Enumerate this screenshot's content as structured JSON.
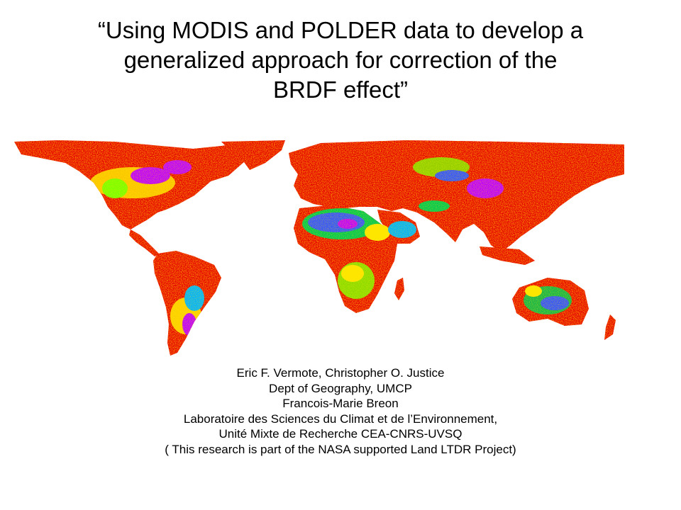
{
  "slide": {
    "title_lines": [
      "“Using MODIS and POLDER data to develop a",
      "generalized approach for correction of the",
      "BRDF effect”"
    ],
    "credit_lines": [
      "Eric F. Vermote, Christopher O. Justice",
      "Dept of Geography, UMCP",
      "Francois-Marie Breon",
      "Laboratoire des Sciences du Climat et de l’Environnement,",
      "Unité Mixte de Recherche CEA-CNRS-UVSQ",
      "( This research is part of the NASA supported Land LTDR Project)"
    ]
  },
  "map": {
    "palette": [
      "#d40000",
      "#ff6a00",
      "#ffe600",
      "#7cff00",
      "#00c853",
      "#00b3ff",
      "#3355ff",
      "#c000ff"
    ]
  }
}
